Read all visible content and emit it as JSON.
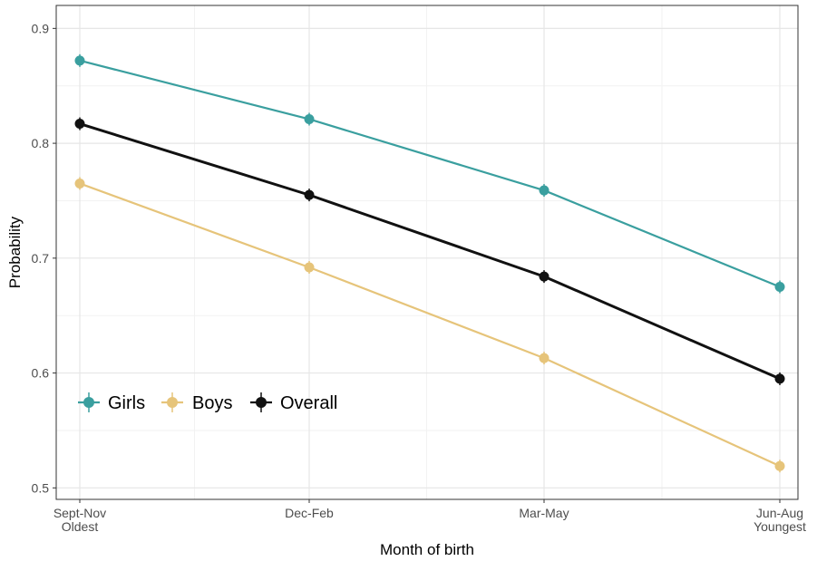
{
  "chart_data": {
    "type": "line",
    "categories": [
      [
        "Sept-Nov",
        "Oldest"
      ],
      [
        "Dec-Feb"
      ],
      [
        "Mar-May"
      ],
      [
        "Jun-Aug",
        "Youngest"
      ]
    ],
    "series": [
      {
        "name": "Girls",
        "color": "#3a9f9f",
        "values": [
          0.872,
          0.821,
          0.759,
          0.675
        ]
      },
      {
        "name": "Boys",
        "color": "#e6c47a",
        "values": [
          0.765,
          0.692,
          0.613,
          0.519
        ]
      },
      {
        "name": "Overall",
        "color": "#111111",
        "values": [
          0.817,
          0.755,
          0.684,
          0.595
        ]
      }
    ],
    "xlabel": "Month of birth",
    "ylabel": "Probability",
    "ylim": [
      0.49,
      0.92
    ],
    "yticks": [
      0.5,
      0.6,
      0.7,
      0.8,
      0.9
    ],
    "yticklabels": [
      "0.5",
      "0.6",
      "0.7",
      "0.8",
      "0.9"
    ],
    "grid": true,
    "legend_position": "inside-bottom-left"
  }
}
